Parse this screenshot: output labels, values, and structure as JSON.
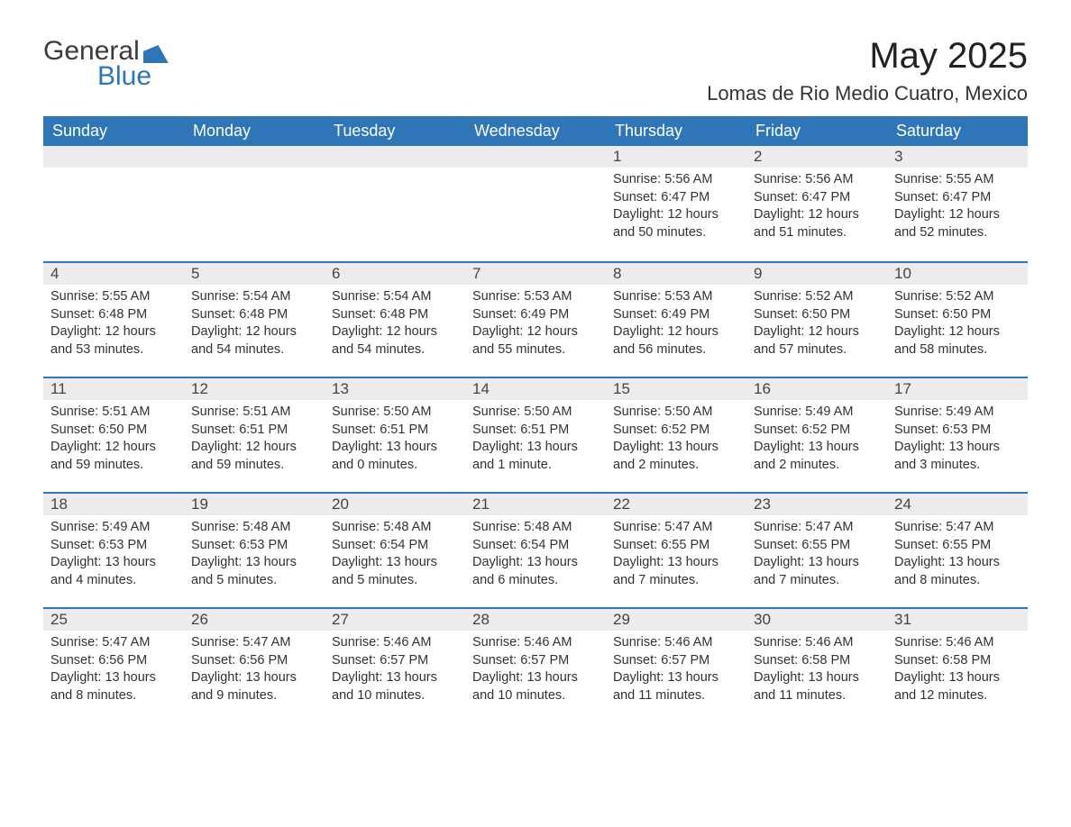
{
  "logo": {
    "text1": "General",
    "text2": "Blue"
  },
  "title": "May 2025",
  "location": "Lomas de Rio Medio Cuatro, Mexico",
  "colors": {
    "header_bg": "#2f76b8",
    "header_text": "#ffffff",
    "daynum_bg": "#ececec",
    "border_top": "#2f76b8",
    "body_text": "#333333",
    "page_bg": "#ffffff"
  },
  "weekdays": [
    "Sunday",
    "Monday",
    "Tuesday",
    "Wednesday",
    "Thursday",
    "Friday",
    "Saturday"
  ],
  "weeks": [
    [
      null,
      null,
      null,
      null,
      {
        "d": "1",
        "sunrise": "5:56 AM",
        "sunset": "6:47 PM",
        "daylight": "12 hours and 50 minutes."
      },
      {
        "d": "2",
        "sunrise": "5:56 AM",
        "sunset": "6:47 PM",
        "daylight": "12 hours and 51 minutes."
      },
      {
        "d": "3",
        "sunrise": "5:55 AM",
        "sunset": "6:47 PM",
        "daylight": "12 hours and 52 minutes."
      }
    ],
    [
      {
        "d": "4",
        "sunrise": "5:55 AM",
        "sunset": "6:48 PM",
        "daylight": "12 hours and 53 minutes."
      },
      {
        "d": "5",
        "sunrise": "5:54 AM",
        "sunset": "6:48 PM",
        "daylight": "12 hours and 54 minutes."
      },
      {
        "d": "6",
        "sunrise": "5:54 AM",
        "sunset": "6:48 PM",
        "daylight": "12 hours and 54 minutes."
      },
      {
        "d": "7",
        "sunrise": "5:53 AM",
        "sunset": "6:49 PM",
        "daylight": "12 hours and 55 minutes."
      },
      {
        "d": "8",
        "sunrise": "5:53 AM",
        "sunset": "6:49 PM",
        "daylight": "12 hours and 56 minutes."
      },
      {
        "d": "9",
        "sunrise": "5:52 AM",
        "sunset": "6:50 PM",
        "daylight": "12 hours and 57 minutes."
      },
      {
        "d": "10",
        "sunrise": "5:52 AM",
        "sunset": "6:50 PM",
        "daylight": "12 hours and 58 minutes."
      }
    ],
    [
      {
        "d": "11",
        "sunrise": "5:51 AM",
        "sunset": "6:50 PM",
        "daylight": "12 hours and 59 minutes."
      },
      {
        "d": "12",
        "sunrise": "5:51 AM",
        "sunset": "6:51 PM",
        "daylight": "12 hours and 59 minutes."
      },
      {
        "d": "13",
        "sunrise": "5:50 AM",
        "sunset": "6:51 PM",
        "daylight": "13 hours and 0 minutes."
      },
      {
        "d": "14",
        "sunrise": "5:50 AM",
        "sunset": "6:51 PM",
        "daylight": "13 hours and 1 minute."
      },
      {
        "d": "15",
        "sunrise": "5:50 AM",
        "sunset": "6:52 PM",
        "daylight": "13 hours and 2 minutes."
      },
      {
        "d": "16",
        "sunrise": "5:49 AM",
        "sunset": "6:52 PM",
        "daylight": "13 hours and 2 minutes."
      },
      {
        "d": "17",
        "sunrise": "5:49 AM",
        "sunset": "6:53 PM",
        "daylight": "13 hours and 3 minutes."
      }
    ],
    [
      {
        "d": "18",
        "sunrise": "5:49 AM",
        "sunset": "6:53 PM",
        "daylight": "13 hours and 4 minutes."
      },
      {
        "d": "19",
        "sunrise": "5:48 AM",
        "sunset": "6:53 PM",
        "daylight": "13 hours and 5 minutes."
      },
      {
        "d": "20",
        "sunrise": "5:48 AM",
        "sunset": "6:54 PM",
        "daylight": "13 hours and 5 minutes."
      },
      {
        "d": "21",
        "sunrise": "5:48 AM",
        "sunset": "6:54 PM",
        "daylight": "13 hours and 6 minutes."
      },
      {
        "d": "22",
        "sunrise": "5:47 AM",
        "sunset": "6:55 PM",
        "daylight": "13 hours and 7 minutes."
      },
      {
        "d": "23",
        "sunrise": "5:47 AM",
        "sunset": "6:55 PM",
        "daylight": "13 hours and 7 minutes."
      },
      {
        "d": "24",
        "sunrise": "5:47 AM",
        "sunset": "6:55 PM",
        "daylight": "13 hours and 8 minutes."
      }
    ],
    [
      {
        "d": "25",
        "sunrise": "5:47 AM",
        "sunset": "6:56 PM",
        "daylight": "13 hours and 8 minutes."
      },
      {
        "d": "26",
        "sunrise": "5:47 AM",
        "sunset": "6:56 PM",
        "daylight": "13 hours and 9 minutes."
      },
      {
        "d": "27",
        "sunrise": "5:46 AM",
        "sunset": "6:57 PM",
        "daylight": "13 hours and 10 minutes."
      },
      {
        "d": "28",
        "sunrise": "5:46 AM",
        "sunset": "6:57 PM",
        "daylight": "13 hours and 10 minutes."
      },
      {
        "d": "29",
        "sunrise": "5:46 AM",
        "sunset": "6:57 PM",
        "daylight": "13 hours and 11 minutes."
      },
      {
        "d": "30",
        "sunrise": "5:46 AM",
        "sunset": "6:58 PM",
        "daylight": "13 hours and 11 minutes."
      },
      {
        "d": "31",
        "sunrise": "5:46 AM",
        "sunset": "6:58 PM",
        "daylight": "13 hours and 12 minutes."
      }
    ]
  ],
  "labels": {
    "sunrise": "Sunrise: ",
    "sunset": "Sunset: ",
    "daylight": "Daylight: "
  }
}
